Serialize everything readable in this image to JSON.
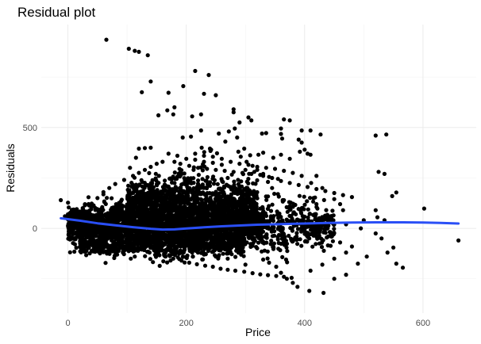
{
  "chart_data": {
    "type": "scatter",
    "title": "Residual plot",
    "xlabel": "Price",
    "ylabel": "Residuals",
    "xlim": [
      -45,
      690
    ],
    "ylim": [
      -420,
      1010
    ],
    "x_ticks": [
      0,
      200,
      400,
      600
    ],
    "y_ticks": [
      0,
      500
    ],
    "grid": true,
    "theme": "minimal",
    "point_color": "#000000",
    "smooth_color": "#2a4ff6",
    "points": [
      [
        -12,
        140
      ],
      [
        65,
        935
      ],
      [
        103,
        890
      ],
      [
        113,
        880
      ],
      [
        120,
        875
      ],
      [
        135,
        858
      ],
      [
        140,
        728
      ],
      [
        125,
        675
      ],
      [
        195,
        705
      ],
      [
        215,
        780
      ],
      [
        238,
        760
      ],
      [
        230,
        667
      ],
      [
        250,
        660
      ],
      [
        170,
        672
      ],
      [
        180,
        600
      ],
      [
        168,
        585
      ],
      [
        178,
        565
      ],
      [
        153,
        560
      ],
      [
        210,
        555
      ],
      [
        225,
        565
      ],
      [
        280,
        590
      ],
      [
        280,
        575
      ],
      [
        305,
        550
      ],
      [
        290,
        525
      ],
      [
        310,
        535
      ],
      [
        365,
        540
      ],
      [
        375,
        535
      ],
      [
        328,
        470
      ],
      [
        335,
        472
      ],
      [
        360,
        468
      ],
      [
        360,
        495
      ],
      [
        395,
        485
      ],
      [
        410,
        485
      ],
      [
        390,
        440
      ],
      [
        395,
        425
      ],
      [
        362,
        445
      ],
      [
        282,
        495
      ],
      [
        272,
        480
      ],
      [
        286,
        450
      ],
      [
        194,
        450
      ],
      [
        208,
        455
      ],
      [
        225,
        485
      ],
      [
        255,
        470
      ],
      [
        266,
        430
      ],
      [
        240,
        395
      ],
      [
        226,
        400
      ],
      [
        242,
        390
      ],
      [
        252,
        372
      ],
      [
        288,
        380
      ],
      [
        298,
        395
      ],
      [
        308,
        362
      ],
      [
        322,
        365
      ],
      [
        330,
        375
      ],
      [
        347,
        350
      ],
      [
        360,
        365
      ],
      [
        375,
        345
      ],
      [
        392,
        380
      ],
      [
        400,
        390
      ],
      [
        405,
        370
      ],
      [
        410,
        365
      ],
      [
        427,
        465
      ],
      [
        520,
        460
      ],
      [
        538,
        465
      ],
      [
        602,
        98
      ],
      [
        660,
        -60
      ],
      [
        555,
        178
      ],
      [
        525,
        280
      ],
      [
        535,
        270
      ],
      [
        548,
        160
      ],
      [
        420,
        260
      ],
      [
        411,
        225
      ],
      [
        430,
        200
      ],
      [
        415,
        150
      ],
      [
        420,
        120
      ],
      [
        450,
        145
      ],
      [
        460,
        120
      ],
      [
        465,
        90
      ],
      [
        520,
        90
      ],
      [
        523,
        55
      ],
      [
        535,
        40
      ],
      [
        500,
        40
      ],
      [
        440,
        60
      ],
      [
        470,
        20
      ],
      [
        495,
        0
      ],
      [
        520,
        -25
      ],
      [
        530,
        -50
      ],
      [
        550,
        -95
      ],
      [
        566,
        -195
      ],
      [
        555,
        -175
      ],
      [
        540,
        -120
      ],
      [
        505,
        -140
      ],
      [
        490,
        -175
      ],
      [
        470,
        -230
      ],
      [
        450,
        -250
      ],
      [
        432,
        -320
      ],
      [
        408,
        -310
      ],
      [
        388,
        -290
      ],
      [
        380,
        -270
      ],
      [
        370,
        -250
      ],
      [
        360,
        -220
      ],
      [
        352,
        -190
      ],
      [
        340,
        -170
      ],
      [
        330,
        -155
      ],
      [
        410,
        -210
      ],
      [
        430,
        -180
      ],
      [
        450,
        -150
      ],
      [
        470,
        -120
      ],
      [
        480,
        -90
      ],
      [
        460,
        -70
      ],
      [
        440,
        -40
      ],
      [
        425,
        -20
      ],
      [
        410,
        10
      ],
      [
        398,
        40
      ],
      [
        385,
        70
      ],
      [
        375,
        110
      ],
      [
        365,
        140
      ],
      [
        355,
        170
      ],
      [
        345,
        200
      ],
      [
        338,
        230
      ],
      [
        330,
        260
      ],
      [
        320,
        290
      ],
      [
        312,
        310
      ],
      [
        302,
        330
      ],
      [
        292,
        355
      ],
      [
        140,
        400
      ],
      [
        130,
        398
      ],
      [
        120,
        395
      ],
      [
        115,
        350
      ],
      [
        105,
        300
      ],
      [
        95,
        240
      ],
      [
        80,
        220
      ],
      [
        70,
        200
      ],
      [
        60,
        180
      ],
      [
        50,
        150
      ],
      [
        35,
        120
      ],
      [
        25,
        100
      ],
      [
        15,
        95
      ],
      [
        5,
        80
      ],
      [
        0,
        70
      ],
      [
        -5,
        60
      ],
      [
        10,
        40
      ],
      [
        20,
        30
      ],
      [
        30,
        15
      ],
      [
        40,
        0
      ],
      [
        55,
        -10
      ],
      [
        65,
        -25
      ],
      [
        75,
        -40
      ],
      [
        88,
        -55
      ],
      [
        100,
        -75
      ],
      [
        112,
        -95
      ],
      [
        125,
        -105
      ],
      [
        138,
        -120
      ],
      [
        150,
        -130
      ],
      [
        165,
        -140
      ],
      [
        178,
        -150
      ],
      [
        192,
        -160
      ],
      [
        205,
        -170
      ],
      [
        218,
        -178
      ],
      [
        232,
        -185
      ],
      [
        245,
        -190
      ],
      [
        258,
        -200
      ],
      [
        270,
        -205
      ],
      [
        283,
        -210
      ],
      [
        298,
        -215
      ],
      [
        312,
        -222
      ],
      [
        325,
        -228
      ],
      [
        338,
        -232
      ],
      [
        352,
        -236
      ],
      [
        365,
        -240
      ],
      [
        378,
        -245
      ],
      [
        300,
        -180
      ],
      [
        270,
        -150
      ],
      [
        250,
        -140
      ],
      [
        230,
        -130
      ],
      [
        210,
        -120
      ],
      [
        190,
        -110
      ],
      [
        170,
        -95
      ],
      [
        150,
        -85
      ],
      [
        135,
        -70
      ],
      [
        120,
        -60
      ],
      [
        105,
        -45
      ],
      [
        90,
        -30
      ],
      [
        75,
        -15
      ],
      [
        60,
        0
      ],
      [
        180,
        330
      ],
      [
        190,
        320
      ],
      [
        205,
        310
      ],
      [
        220,
        300
      ],
      [
        235,
        295
      ],
      [
        250,
        290
      ],
      [
        265,
        285
      ],
      [
        280,
        280
      ],
      [
        295,
        275
      ],
      [
        310,
        270
      ],
      [
        325,
        265
      ],
      [
        340,
        255
      ],
      [
        355,
        245
      ],
      [
        160,
        330
      ],
      [
        150,
        320
      ],
      [
        140,
        305
      ],
      [
        130,
        290
      ],
      [
        120,
        275
      ],
      [
        110,
        260
      ],
      [
        170,
        370
      ],
      [
        185,
        360
      ],
      [
        200,
        345
      ],
      [
        215,
        340
      ],
      [
        230,
        330
      ],
      [
        245,
        325
      ],
      [
        260,
        315
      ],
      [
        300,
        290
      ],
      [
        315,
        280
      ],
      [
        330,
        270
      ],
      [
        345,
        250
      ],
      [
        360,
        235
      ],
      [
        375,
        225
      ],
      [
        390,
        215
      ],
      [
        405,
        205
      ],
      [
        420,
        195
      ],
      [
        435,
        185
      ],
      [
        450,
        175
      ],
      [
        465,
        165
      ],
      [
        480,
        155
      ],
      [
        395,
        260
      ],
      [
        380,
        275
      ],
      [
        365,
        285
      ],
      [
        350,
        295
      ],
      [
        335,
        300
      ],
      [
        320,
        305
      ],
      [
        305,
        315
      ],
      [
        290,
        320
      ],
      [
        275,
        330
      ],
      [
        260,
        345
      ],
      [
        245,
        355
      ],
      [
        230,
        360
      ],
      [
        215,
        370
      ]
    ],
    "dense_core": [
      {
        "x_range": [
          0,
          330
        ],
        "center": 20,
        "spread": 110,
        "count": 2600
      },
      {
        "x_range": [
          100,
          320
        ],
        "center": 140,
        "spread": 130,
        "count": 900
      },
      {
        "x_range": [
          20,
          300
        ],
        "center": -80,
        "spread": 70,
        "count": 700
      },
      {
        "x_range": [
          280,
          450
        ],
        "center": 10,
        "spread": 120,
        "count": 450
      }
    ],
    "smooth": [
      [
        -12,
        50
      ],
      [
        20,
        38
      ],
      [
        50,
        25
      ],
      [
        80,
        15
      ],
      [
        110,
        6
      ],
      [
        140,
        -2
      ],
      [
        160,
        -6
      ],
      [
        180,
        -5
      ],
      [
        200,
        -1
      ],
      [
        230,
        5
      ],
      [
        260,
        10
      ],
      [
        290,
        14
      ],
      [
        320,
        18
      ],
      [
        360,
        21
      ],
      [
        400,
        24
      ],
      [
        440,
        27
      ],
      [
        480,
        29
      ],
      [
        520,
        30
      ],
      [
        560,
        30
      ],
      [
        600,
        29
      ],
      [
        630,
        27
      ],
      [
        660,
        24
      ]
    ]
  }
}
